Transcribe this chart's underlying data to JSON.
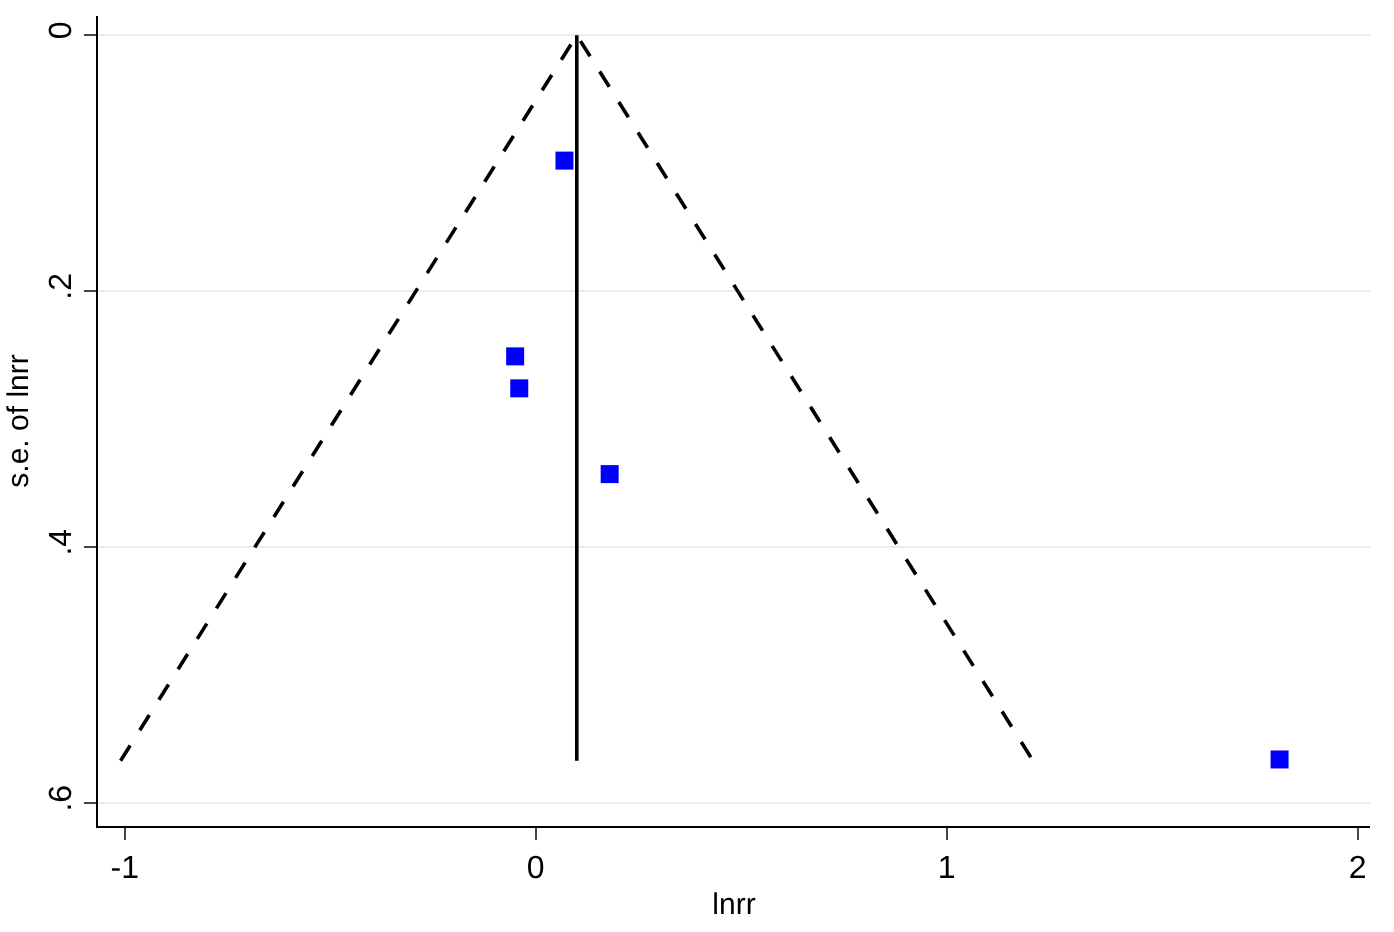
{
  "chart_data": {
    "type": "scatter",
    "xlabel": "lnrr",
    "ylabel": "s.e. of lnrr",
    "xlim": [
      -1.065,
      2.03
    ],
    "ylim": [
      0.618,
      -0.015
    ],
    "xticks": [
      -1,
      0,
      1,
      2
    ],
    "yticks": [
      {
        "value": 0,
        "label": "0"
      },
      {
        "value": 0.2,
        "label": ".2"
      },
      {
        "value": 0.4,
        "label": ".4"
      },
      {
        "value": 0.6,
        "label": ".6"
      }
    ],
    "grid": "y",
    "series": [
      {
        "marker": "square",
        "color": "#0000ff",
        "x": [
          0.07,
          -0.05,
          -0.04,
          0.18,
          1.81
        ],
        "values": [
          0.098,
          0.251,
          0.276,
          0.343,
          0.566
        ]
      },
      {
        "type": "line",
        "line_style": "solid",
        "color": "#000000",
        "x": [
          0.1,
          0.1
        ],
        "values": [
          0,
          0.567
        ]
      },
      {
        "type": "line",
        "line_style": "dashed",
        "color": "#000000",
        "x": [
          -1.01,
          0.1,
          1.21
        ],
        "values": [
          0.567,
          0,
          0.567
        ]
      }
    ]
  }
}
